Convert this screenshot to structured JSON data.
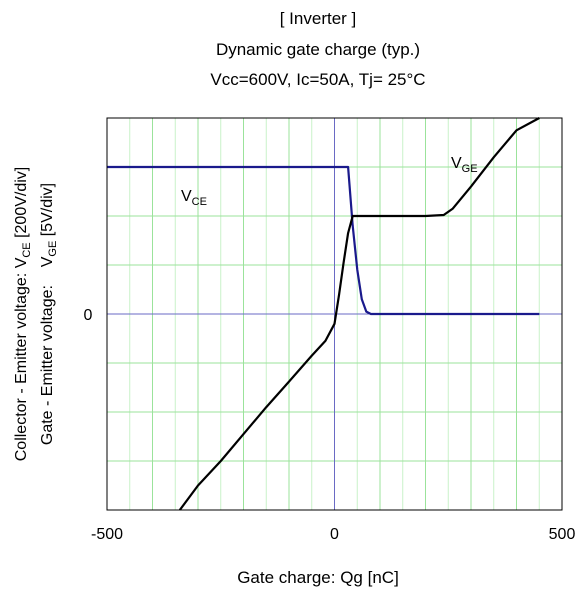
{
  "chart_data": {
    "type": "line",
    "title_lines": [
      "[ Inverter ]",
      "Dynamic gate charge  (typ.)",
      "Vcc=600V,   Ic=50A,   Tj= 25°C"
    ],
    "xlabel": "Gate charge: Qg [nC]",
    "ylabel_outer": {
      "prefix": "Collector - Emitter voltage: V",
      "sub": "CE",
      "suffix": " [200V/div]"
    },
    "ylabel_inner": {
      "prefix": "Gate - Emitter voltage:    V",
      "sub": "GE",
      "suffix": " [5V/div]"
    },
    "x_ticks": [
      "-500",
      "0",
      "500"
    ],
    "y_tick_zero": "0",
    "xlim": [
      -500,
      500
    ],
    "ylim": [
      -4,
      4
    ],
    "grid": true,
    "series": [
      {
        "name": "VCE",
        "label_main": "V",
        "label_sub": "CE",
        "color": "#1a1a8c",
        "x": [
          -500,
          30,
          40,
          50,
          60,
          70,
          80,
          100,
          150,
          200,
          300,
          400,
          450
        ],
        "y": [
          3,
          3,
          1.8,
          0.9,
          0.3,
          0.05,
          0,
          0,
          0,
          0,
          0,
          0,
          0
        ]
      },
      {
        "name": "VGE",
        "label_main": "V",
        "label_sub": "GE",
        "color": "#000000",
        "x": [
          -340,
          -300,
          -250,
          -200,
          -150,
          -100,
          -50,
          -20,
          0,
          10,
          20,
          30,
          40,
          60,
          100,
          150,
          200,
          240,
          260,
          300,
          350,
          400,
          450
        ],
        "y": [
          -4,
          -3.5,
          -3.0,
          -2.45,
          -1.9,
          -1.38,
          -0.85,
          -0.55,
          -0.2,
          0.4,
          1.05,
          1.65,
          2.0,
          2.0,
          2.0,
          2.0,
          2.0,
          2.02,
          2.15,
          2.6,
          3.2,
          3.75,
          4.0
        ]
      }
    ]
  }
}
